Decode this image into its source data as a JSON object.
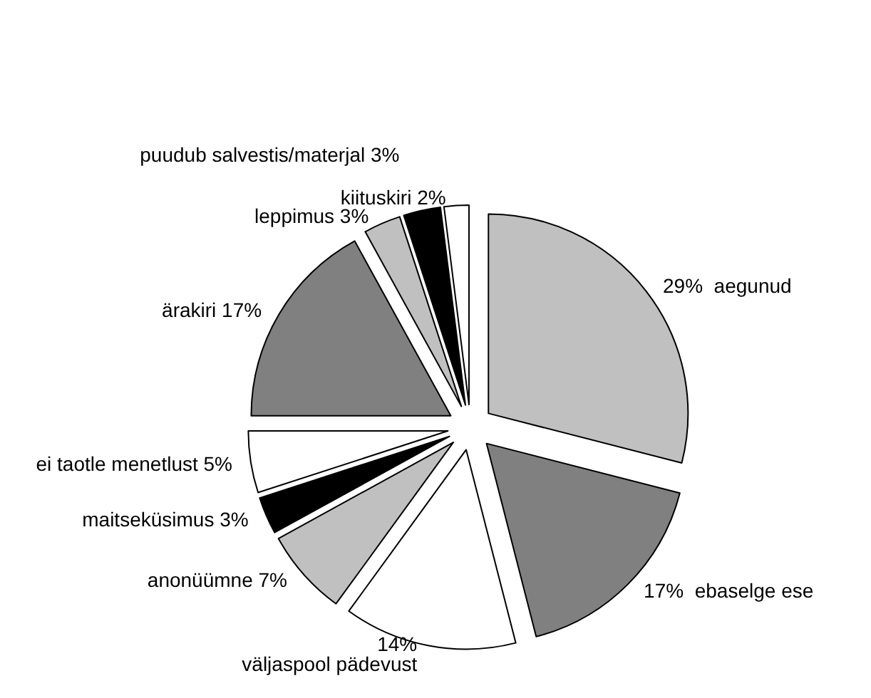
{
  "chart_data": {
    "type": "pie",
    "categories": [
      "aegunud",
      "ebaselge ese",
      "väljaspool pädevust",
      "anonüümne",
      "maitseküsimus",
      "ei taotle menetlust",
      "ärakiri",
      "leppimus",
      "puudub salvestis/materjal",
      "kiituskiri"
    ],
    "values": [
      29,
      17,
      14,
      7,
      3,
      5,
      17,
      3,
      3,
      2
    ],
    "value_labels": [
      "29%",
      "17%",
      "14%",
      "7%",
      "3%",
      "5%",
      "17%",
      "3%",
      "3%",
      "2%"
    ],
    "colors": [
      "#c0c0c0",
      "#808080",
      "#ffffff",
      "#c0c0c0",
      "#000000",
      "#ffffff",
      "#808080",
      "#c0c0c0",
      "#000000",
      "#ffffff"
    ],
    "legend": false
  }
}
